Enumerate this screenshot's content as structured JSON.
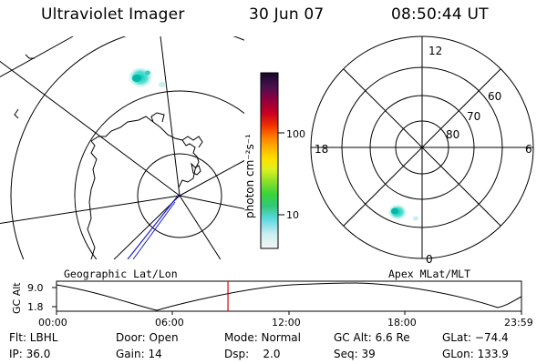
{
  "header": {
    "title": "Ultraviolet Imager",
    "date": "30 Jun 07",
    "time": "08:50:44 UT"
  },
  "colorbar": {
    "unit_label": "photon cm⁻²s⁻¹",
    "ticks": [
      "100",
      "10"
    ]
  },
  "geo_panel": {
    "label": "Geographic Lat/Lon"
  },
  "apex_panel": {
    "label": "Apex MLat/MLT",
    "mlt_labels": {
      "top": "12",
      "left": "18",
      "right": "6",
      "bottom": "0"
    },
    "lat_labels": [
      "60",
      "70",
      "80"
    ]
  },
  "altitude_plot": {
    "axis_label": "GC Alt",
    "y_ticks": [
      "9.0",
      "1.8"
    ],
    "x_ticks": [
      "00:00",
      "06:00",
      "12:00",
      "18:00",
      "23:59"
    ],
    "current_time_hours": 8.85,
    "marker_color": "#e00000"
  },
  "status": {
    "flt": "Flt: LBHL",
    "ip": "IP: 36.0",
    "door": "Door: Open",
    "gain": "Gain: 14",
    "mode": "Mode: Normal",
    "dsp": "Dsp:    2.0",
    "gcalt": "GC Alt: 6.6 Re",
    "seq": "Seq: 39",
    "glat": "GLat: −74.4",
    "glon": "GLon: 133.9"
  }
}
